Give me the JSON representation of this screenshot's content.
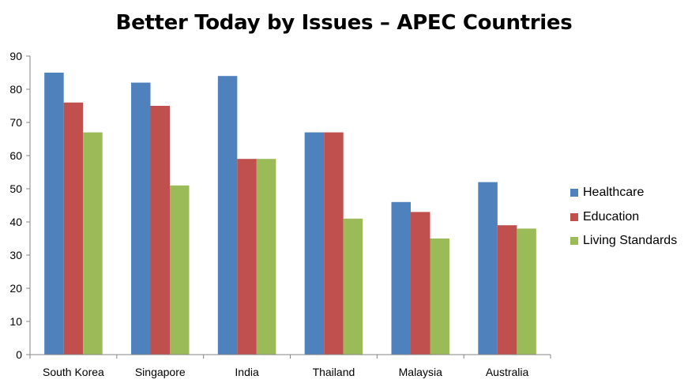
{
  "chart_data": {
    "type": "bar",
    "title": "Better Today by Issues – APEC Countries",
    "xlabel": "",
    "ylabel": "",
    "ylim": [
      0,
      90
    ],
    "yticks": [
      0,
      10,
      20,
      30,
      40,
      50,
      60,
      70,
      80,
      90
    ],
    "grid": false,
    "legend_position": "right",
    "categories": [
      "South Korea",
      "Singapore",
      "India",
      "Thailand",
      "Malaysia",
      "Australia"
    ],
    "series": [
      {
        "name": "Healthcare",
        "color": "#4F81BD",
        "values": [
          85,
          82,
          84,
          67,
          46,
          52
        ]
      },
      {
        "name": "Education",
        "color": "#C0504D",
        "values": [
          76,
          75,
          59,
          67,
          43,
          39
        ]
      },
      {
        "name": "Living Standards",
        "color": "#9BBB59",
        "values": [
          67,
          51,
          59,
          41,
          35,
          38
        ]
      }
    ]
  }
}
